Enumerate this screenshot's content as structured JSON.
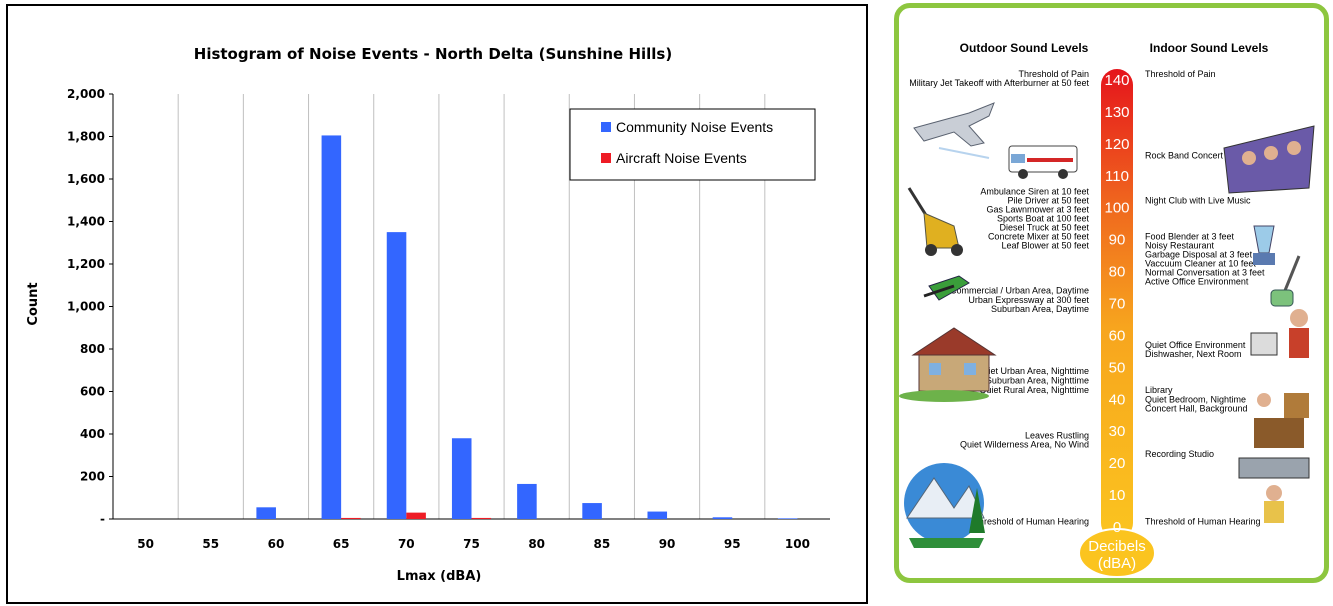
{
  "chart_data": {
    "type": "bar",
    "title": "Histogram of Noise Events - North Delta (Sunshine Hills)",
    "xlabel": "Lmax (dBA)",
    "ylabel": "Count",
    "categories": [
      "50",
      "55",
      "60",
      "65",
      "70",
      "75",
      "80",
      "85",
      "90",
      "95",
      "100"
    ],
    "y_tick_labels": [
      "-",
      "200",
      "400",
      "600",
      "800",
      "1,000",
      "1,200",
      "1,400",
      "1,600",
      "1,800",
      "2,000"
    ],
    "ylim": [
      0,
      2000
    ],
    "grid": "vertical",
    "legend_position": "top-right",
    "series": [
      {
        "name": "Community Noise Events",
        "color": "#3366ff",
        "values": [
          0,
          0,
          55,
          1805,
          1350,
          380,
          165,
          75,
          35,
          8,
          3
        ]
      },
      {
        "name": "Aircraft Noise Events",
        "color": "#ee1c25",
        "values": [
          0,
          0,
          0,
          5,
          30,
          5,
          0,
          0,
          0,
          0,
          0
        ]
      }
    ]
  },
  "sound_scale": {
    "outdoor_title": "Outdoor Sound Levels",
    "indoor_title": "Indoor Sound Levels",
    "unit_label_1": "Decibels",
    "unit_label_2": "(dBA)",
    "levels": [
      "140",
      "130",
      "120",
      "110",
      "100",
      "90",
      "80",
      "70",
      "60",
      "50",
      "40",
      "30",
      "20",
      "10",
      "0"
    ],
    "outdoor": [
      {
        "text": "Threshold of Pain",
        "db": 141.5
      },
      {
        "text": "Military Jet Takeoff with Afterburner at 50 feet",
        "db": 138.8
      },
      {
        "text": "Ambulance Siren at 10 feet",
        "db": 104.7
      },
      {
        "text": "Pile Driver at 50 feet",
        "db": 101.9
      },
      {
        "text": "Gas Lawnmower at 3 feet",
        "db": 99.1
      },
      {
        "text": "Sports Boat at 100 feet",
        "db": 96.3
      },
      {
        "text": "Diesel Truck at 50 feet",
        "db": 93.5
      },
      {
        "text": "Concrete Mixer at 50 feet",
        "db": 90.7
      },
      {
        "text": "Leaf Blower at 50 feet",
        "db": 87.9
      },
      {
        "text": "Commercial / Urban Area, Daytime",
        "db": 73.8
      },
      {
        "text": "Urban Expressway at 300 feet",
        "db": 70.8
      },
      {
        "text": "Suburban Area, Daytime",
        "db": 67.9
      },
      {
        "text": "Quiet Urban Area, Nighttime",
        "db": 48.6
      },
      {
        "text": "Quiet Suburban Area, Nighttime",
        "db": 45.6
      },
      {
        "text": "Quiet Rural Area, Nighttime",
        "db": 42.6
      },
      {
        "text": "Leaves Rustling",
        "db": 28.4
      },
      {
        "text": "Quiet Wilderness Area, No Wind",
        "db": 25.5
      },
      {
        "text": "Threshold of Human Hearing",
        "db": 1.4
      }
    ],
    "indoor": [
      {
        "text": "Threshold of Pain",
        "db": 141.5
      },
      {
        "text": "Rock Band Concert",
        "db": 116.0
      },
      {
        "text": "Night Club with Live Music",
        "db": 101.9
      },
      {
        "text": "Food Blender at 3 feet",
        "db": 90.7
      },
      {
        "text": "Noisy Restaurant",
        "db": 87.9
      },
      {
        "text": "Garbage Disposal at 3 feet",
        "db": 85.0
      },
      {
        "text": "Vaccuum Cleaner at 10 feet",
        "db": 82.2
      },
      {
        "text": "Normal Conversation at 3 feet",
        "db": 79.4
      },
      {
        "text": "Active Office Environment",
        "db": 76.6
      },
      {
        "text": "Quiet Office Environment",
        "db": 56.7
      },
      {
        "text": "Dishwasher, Next Room",
        "db": 53.8
      },
      {
        "text": "Library",
        "db": 42.6
      },
      {
        "text": "Quiet Bedroom, Nightime",
        "db": 39.6
      },
      {
        "text": "Concert Hall, Background",
        "db": 36.8
      },
      {
        "text": "Recording Studio",
        "db": 22.6
      },
      {
        "text": "Threshold of Human Hearing",
        "db": 1.4
      }
    ]
  }
}
